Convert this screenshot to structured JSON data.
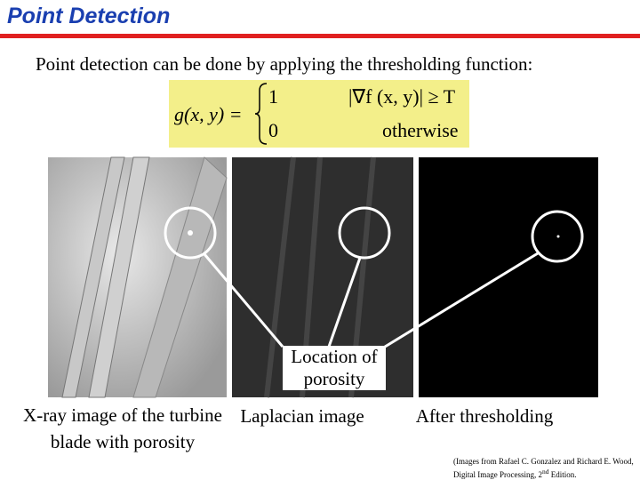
{
  "title": "Point Detection",
  "intro": "Point detection can be done by applying the thresholding function:",
  "formula": {
    "lhs": "g(x, y) =",
    "case1_value": "1",
    "case1_condition": "|∇f (x, y)| ≥ T",
    "case2_value": "0",
    "case2_condition": "otherwise"
  },
  "images": [
    {
      "caption": "X-ray image of the turbine blade with porosity"
    },
    {
      "caption": "Laplacian image"
    },
    {
      "caption": "After thresholding"
    }
  ],
  "annotation": "Location of porosity",
  "citation": {
    "text": "(Images from Rafael C. Gonzalez and Richard E. Wood, Digital Image Processing, 2",
    "superscript": "nd",
    "tail": " Edition."
  }
}
